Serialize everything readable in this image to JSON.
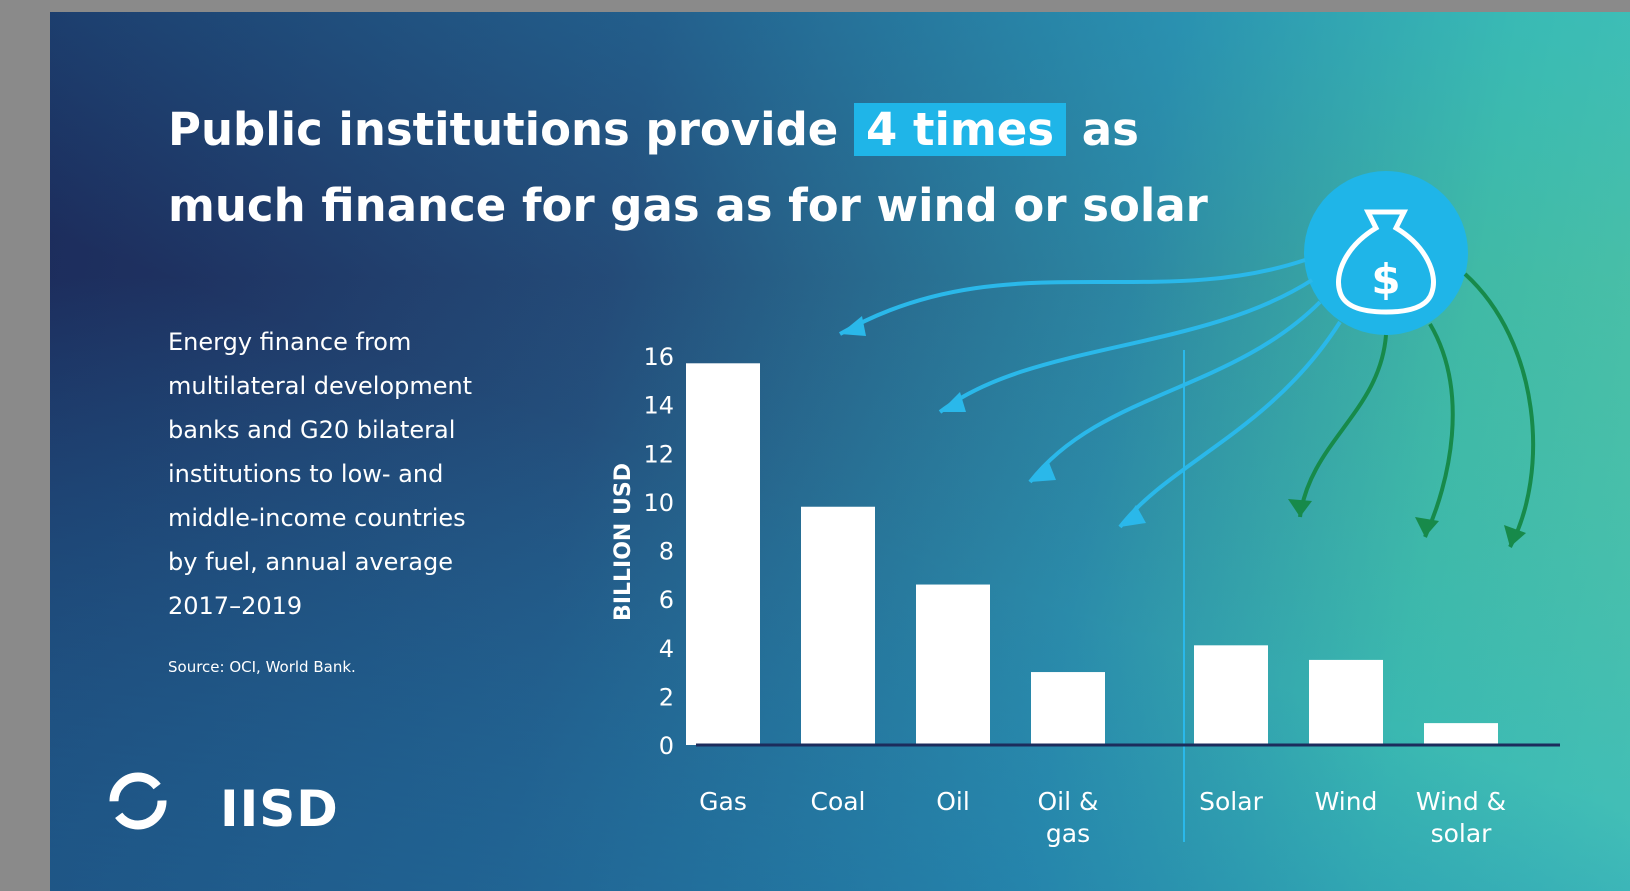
{
  "chart_data": {
    "type": "bar",
    "title_parts": [
      "Public institutions provide",
      "4 times",
      "as",
      "much finance for gas as for wind or solar"
    ],
    "subtitle_lines": [
      "Energy finance from",
      "multilateral development",
      "banks and G20 bilateral",
      "institutions to low- and",
      "middle-income countries",
      "by fuel, annual average",
      "2017–2019"
    ],
    "source": "Source: OCI, World Bank.",
    "logo": "IISD",
    "y_label": "BILLION USD",
    "categories": [
      "Gas",
      "Coal",
      "Oil",
      "Oil & gas",
      "Solar",
      "Wind",
      "Wind & solar"
    ],
    "values": [
      15.7,
      9.8,
      6.6,
      3.0,
      4.1,
      3.5,
      0.9
    ],
    "color": "#ffffff",
    "ylim": [
      0,
      16
    ],
    "yticks": [
      0,
      2,
      4,
      6,
      8,
      10,
      12,
      14,
      16
    ],
    "grid": false
  }
}
